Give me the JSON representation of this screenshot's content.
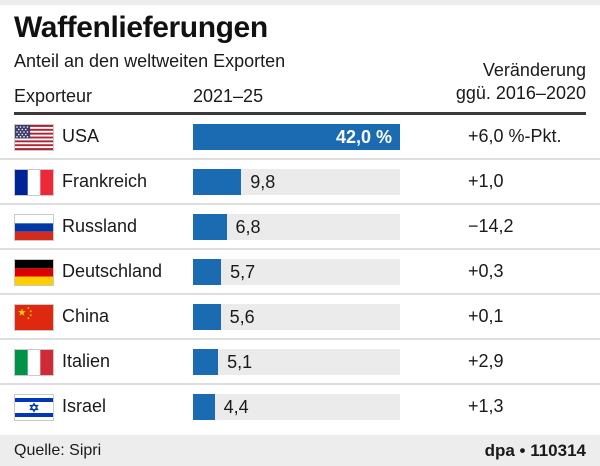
{
  "chart_data": {
    "type": "bar",
    "orientation": "horizontal",
    "title": "Waffenlieferungen",
    "subtitle": "Anteil an den weltweiten Exporten",
    "categories": [
      "USA",
      "Frankreich",
      "Russland",
      "Deutschland",
      "China",
      "Italien",
      "Israel"
    ],
    "values": [
      42.0,
      9.8,
      6.8,
      5.7,
      5.6,
      5.1,
      4.4
    ],
    "value_labels": [
      "42,0 %",
      "9,8",
      "6,8",
      "5,7",
      "5,6",
      "5,1",
      "4,4"
    ],
    "changes": [
      6.0,
      1.0,
      -14.2,
      0.3,
      0.1,
      2.9,
      1.3
    ],
    "change_labels": [
      "+6,0 %-Pkt.",
      "+1,0",
      "−14,2",
      "+0,3",
      "+0,1",
      "+2,9",
      "+1,3"
    ],
    "change_series_name": "Veränderung ggü. 2016–2020",
    "unit": "%",
    "xlim": [
      0,
      42.0
    ],
    "grid": false,
    "legend": false
  },
  "table_headers": {
    "exporter": "Exporteur",
    "period": "2021–25",
    "change_line1": "Veränderung",
    "change_line2": "ggü. 2016–2020"
  },
  "flags": [
    "usa-flag-icon",
    "france-flag-icon",
    "russia-flag-icon",
    "germany-flag-icon",
    "china-flag-icon",
    "italy-flag-icon",
    "israel-flag-icon"
  ],
  "footer": {
    "source": "Quelle: Sipri",
    "credit": "dpa • 110314"
  },
  "colors": {
    "bar_blue": "#1a6bb2",
    "track_gray": "#ebebeb",
    "band_gray": "#ededed",
    "rule_dark": "#3a3a3a",
    "separator_gray": "#dedede",
    "text": "#1a1a1a"
  }
}
